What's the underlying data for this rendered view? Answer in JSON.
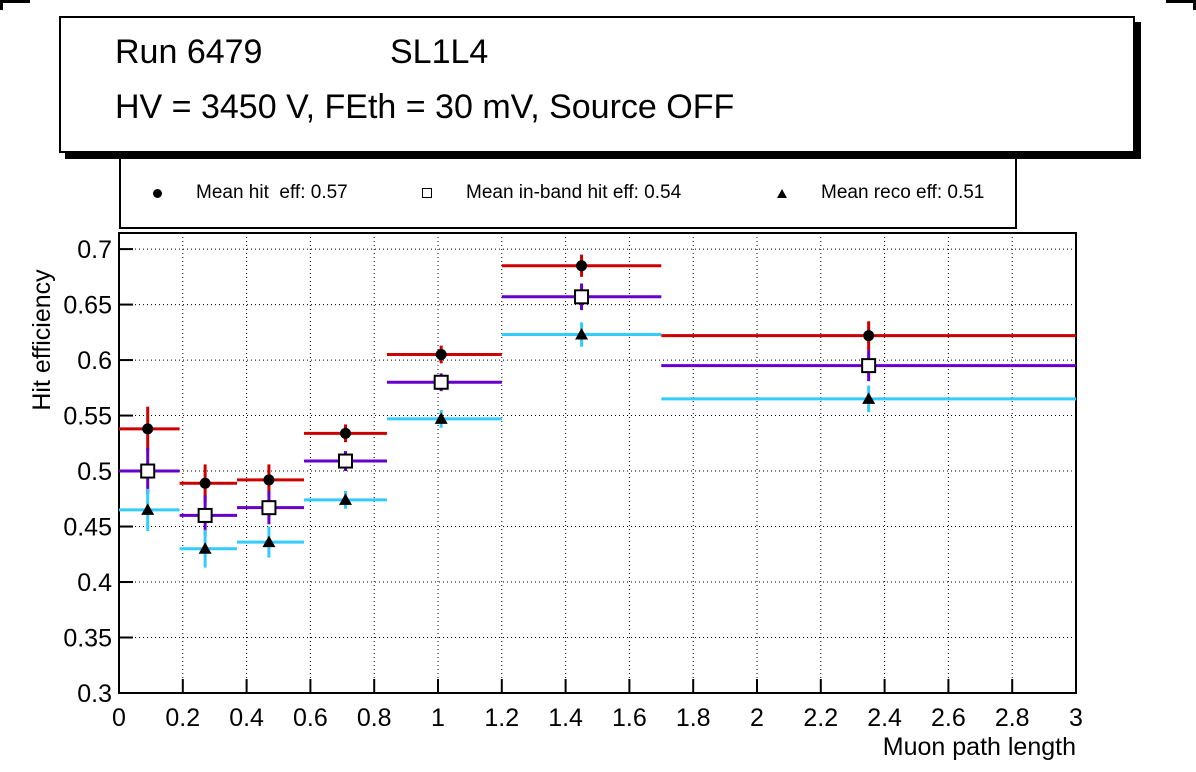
{
  "title_box": {
    "line1_left": "Run 6479",
    "line1_right": "SL1L4",
    "line2": "HV = 3450 V, FEth = 30 mV, Source OFF"
  },
  "legend": {
    "entries": [
      {
        "marker": "filled-circle",
        "label": "Mean hit  eff: 0.57"
      },
      {
        "marker": "open-square",
        "label": "Mean in-band hit eff: 0.54"
      },
      {
        "marker": "filled-triangle",
        "label": "Mean reco eff: 0.51"
      }
    ]
  },
  "chart_data": {
    "type": "scatter",
    "title": "",
    "xlabel": "Muon path length",
    "ylabel": "Hit efficiency",
    "xlim": [
      0,
      3
    ],
    "ylim": [
      0.3,
      0.7145
    ],
    "grid": true,
    "legend_position": "top",
    "x_ticks": [
      0,
      0.2,
      0.4,
      0.6,
      0.8,
      1,
      1.2,
      1.4,
      1.6,
      1.8,
      2,
      2.2,
      2.4,
      2.6,
      2.8,
      3
    ],
    "x_tick_labels": [
      "0",
      "0.2",
      "0.4",
      "0.6",
      "0.8",
      "1",
      "1.2",
      "1.4",
      "1.6",
      "1.8",
      "2",
      "2.2",
      "2.4",
      "2.6",
      "2.8",
      "3"
    ],
    "y_ticks": [
      0.3,
      0.35,
      0.4,
      0.45,
      0.5,
      0.55,
      0.6,
      0.65,
      0.7
    ],
    "y_tick_labels": [
      "0.3",
      "0.35",
      "0.4",
      "0.45",
      "0.5",
      "0.55",
      "0.6",
      "0.65",
      "0.7"
    ],
    "bin_edges": [
      0,
      0.19,
      0.37,
      0.58,
      0.84,
      1.2,
      1.7,
      3.0
    ],
    "x": [
      0.09,
      0.27,
      0.47,
      0.71,
      1.01,
      1.45,
      2.35
    ],
    "series": [
      {
        "id": "hit-eff",
        "name": "Mean hit eff",
        "mean": 0.57,
        "color": "#cc0000",
        "marker": "filled-circle",
        "values": [
          0.538,
          0.489,
          0.492,
          0.534,
          0.605,
          0.685,
          0.622
        ],
        "yerr": [
          0.02,
          0.017,
          0.014,
          0.008,
          0.008,
          0.01,
          0.013
        ]
      },
      {
        "id": "in-band-hit-eff",
        "name": "Mean in-band hit eff",
        "mean": 0.54,
        "color": "#6600cc",
        "marker": "open-square",
        "values": [
          0.5,
          0.46,
          0.467,
          0.509,
          0.58,
          0.657,
          0.595
        ],
        "yerr": [
          0.021,
          0.018,
          0.015,
          0.009,
          0.008,
          0.012,
          0.014
        ]
      },
      {
        "id": "reco-eff",
        "name": "Mean reco eff",
        "mean": 0.51,
        "color": "#33ccff",
        "marker": "filled-triangle",
        "values": [
          0.465,
          0.43,
          0.436,
          0.474,
          0.547,
          0.623,
          0.565
        ],
        "yerr": [
          0.019,
          0.017,
          0.014,
          0.008,
          0.008,
          0.011,
          0.012
        ]
      }
    ]
  }
}
